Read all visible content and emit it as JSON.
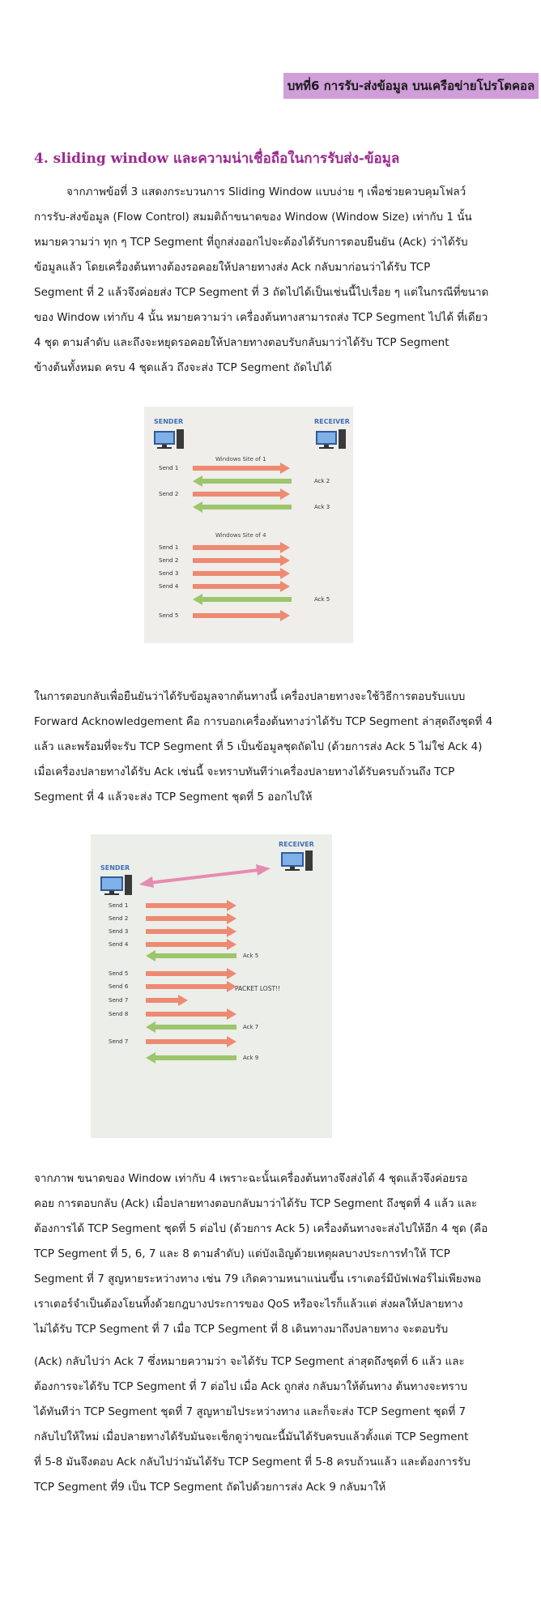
{
  "header": {
    "chapter_tag": "บทที่6 การรับ-ส่งข้อมูล บนเครือข่ายโปรโตคอล"
  },
  "section": {
    "title": "4. sliding window และความน่าเชื่อถือในการรับส่ง-ข้อมูล"
  },
  "paragraphs": {
    "p1_lines": [
      "จากภาพข้อที่ 3 แสดงกระบวนการ Sliding Window แบบง่าย ๆ เพื่อช่วยควบคุมโฟลว์",
      "การรับ-ส่งข้อมูล (Flow Control) สมมติถ้าขนาดของ Window (Window Size) เท่ากับ 1 นั้น",
      "หมายความว่า ทุก ๆ TCP Segment ที่ถูกส่งออกไปจะต้องได้รับการตอบยืนยัน (Ack) ว่าได้รับ",
      "ข้อมูลแล้ว โดยเครื่องต้นทางต้องรอคอยให้ปลายทางส่ง Ack กลับมาก่อนว่าได้รับ TCP",
      "Segment ที่ 2 แล้วจึงค่อยส่ง TCP Segment ที่ 3 ถัดไปได้เป็นเช่นนี้ไปเรื่อย ๆ แต่ในกรณีที่ขนาด",
      "ของ Window เท่ากับ 4 นั้น หมายความว่า เครื่องต้นทางสามารถส่ง TCP Segment ไปได้ ที่เดียว",
      "4 ชุด ตามลำดับ และถึงจะหยุดรอคอยให้ปลายทางตอบรับกลับมาว่าได้รับ TCP Segment",
      "ข้างต้นทั้งหมด ครบ 4 ชุดแล้ว ถึงจะส่ง TCP Segment ถัดไปได้"
    ],
    "p2_lines": [
      "ในการตอบกลับเพื่อยืนยันว่าได้รับข้อมูลจากต้นทางนี้ เครื่องปลายทางจะใช้วิธีการตอบรับแบบ",
      "Forward Acknowledgement คือ การบอกเครื่องต้นทางว่าได้รับ TCP Segment ล่าสุดถึงชุดที่ 4",
      "แล้ว และพร้อมที่จะรับ TCP Segment ที่ 5 เป็นข้อมูลชุดถัดไป (ด้วยการส่ง Ack 5 ไม่ใช่ Ack 4)",
      "เมื่อเครื่องปลายทางได้รับ Ack เช่นนี้ จะทราบทันทีว่าเครื่องปลายทางได้รับครบถ้วนถึง TCP",
      "Segment ที่ 4 แล้วจะส่ง TCP Segment ชุดที่ 5 ออกไปให้"
    ],
    "p3_lines": [
      "จากภาพ ขนาดของ Window เท่ากับ 4 เพราะฉะนั้นเครื่องต้นทางจึงส่งได้ 4 ชุดแล้วจึงค่อยรอ",
      "คอย การตอบกลับ (Ack) เมื่อปลายทางตอบกลับมาว่าได้รับ TCP Segment ถึงชุดที่ 4 แล้ว และ",
      "ต้องการได้ TCP Segment ชุดที่ 5 ต่อไป (ด้วยการ Ack 5) เครื่องต้นทางจะส่งไปให้อีก 4 ชุด (คือ",
      "TCP Segment ที่ 5, 6, 7 และ 8 ตามลำดับ) แต่บังเอิญด้วยเหตุผลบางประการทำให้ TCP",
      "Segment ที่ 7 สูญหายระหว่างทาง เช่น 79 เกิดความหนาแน่นขึ้น เราเตอร์มีบัฟเฟอร์ไม่เพียงพอ",
      "เราเตอร์จำเป็นต้องโยนทิ้งด้วยกฎบางประการของ QoS หรือจะไรก็แล้วแต่ ส่งผลให้ปลายทาง",
      "ไม่ได้รับ TCP Segment ที่ 7 เมื่อ TCP Segment ที่ 8 เดินทางมาถึงปลายทาง จะตอบรับ"
    ],
    "p4_lines": [
      "(Ack) กลับไปว่า Ack 7 ซึ่งหมายความว่า จะได้รับ TCP Segment ล่าสุดถึงชุดที่ 6 แล้ว และ",
      "ต้องการจะได้รับ TCP Segment ที่ 7 ต่อไป เมื่อ Ack ถูกส่ง กลับมาให้ต้นทาง ต้นทางจะทราบ",
      "ได้ทันทีว่า TCP Segment ชุดที่ 7 สูญหายไประหว่างทาง และก็จะส่ง TCP Segment ชุดที่ 7",
      "กลับไปให้ใหม่ เมื่อปลายทางได้รับมันจะเช็กดูว่าขณะนี้มันได้รับครบแล้วตั้งแต่ TCP Segment",
      "ที่ 5-8 มันจึงตอบ Ack กลับไปว่ามันได้รับ TCP Segment ที่ 5-8 ครบถ้วนแล้ว และต้องการรับ",
      "TCP Segment ที่9 เป็น TCP Segment ถัดไปด้วยการส่ง Ack 9 กลับมาให้"
    ]
  },
  "figure1": {
    "sender_label": "SENDER",
    "receiver_label": "RECEIVER",
    "window1_label": "Windows Site of 1",
    "window4_label": "Windows Site of 4",
    "send_labels": [
      "Send 1",
      "Send 2",
      "Send 1",
      "Send 2",
      "Send 3",
      "Send 4",
      "Send 5"
    ],
    "ack_labels": [
      "Ack 2",
      "Ack 3",
      "Ack 5"
    ],
    "colors": {
      "send_arrow": "#ee8a72",
      "ack_arrow": "#9cc56c",
      "sender_label": "#3f70b8",
      "receiver_label": "#3f70b8"
    }
  },
  "figure2": {
    "sender_label": "SENDER",
    "receiver_label": "RECEIVER",
    "send_labels": [
      "Send 1",
      "Send 2",
      "Send 3",
      "Send 4",
      "Send 5",
      "Send 6",
      "Send 7",
      "Send 8",
      "Send 7"
    ],
    "ack_labels": [
      "Ack 5",
      "Ack 7",
      "Ack 9"
    ],
    "lost_label": "PACKET LOST!!",
    "colors": {
      "send_arrow": "#ee8a72",
      "ack_arrow": "#9cc56c",
      "window_arrow": "#e68bb0"
    }
  }
}
